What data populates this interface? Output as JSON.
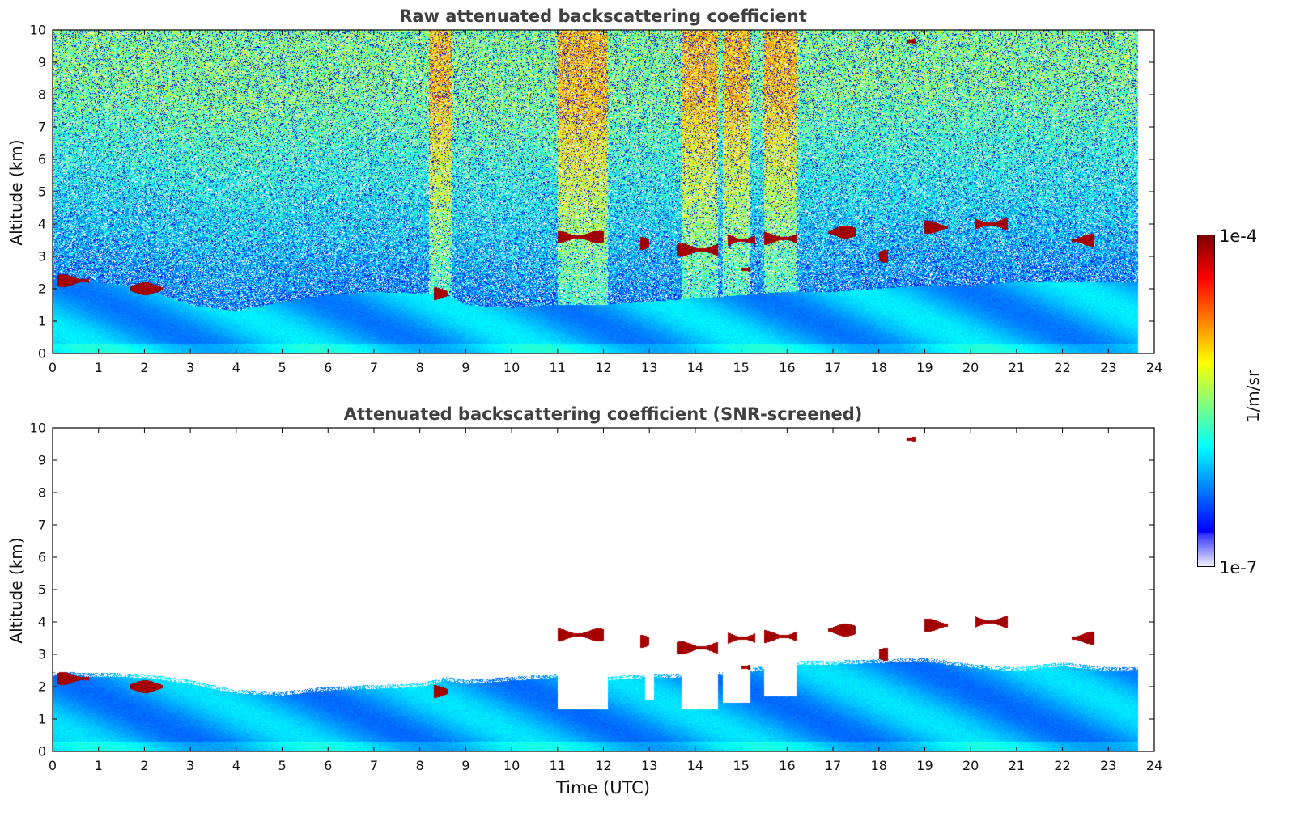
{
  "chart_data": [
    {
      "type": "heatmap",
      "title": "Raw attenuated backscattering coefficient",
      "xlabel": "",
      "ylabel": "Altitude (km)",
      "xlim": [
        0,
        24
      ],
      "ylim": [
        0,
        10
      ],
      "xticks": [
        0,
        1,
        2,
        3,
        4,
        5,
        6,
        7,
        8,
        9,
        10,
        11,
        12,
        13,
        14,
        15,
        16,
        17,
        18,
        19,
        20,
        21,
        22,
        23,
        24
      ],
      "yticks": [
        0,
        1,
        2,
        3,
        4,
        5,
        6,
        7,
        8,
        9,
        10
      ],
      "data_end_time": 23.65,
      "boundary_layer_top_km": [
        [
          0,
          2.3
        ],
        [
          1,
          2.2
        ],
        [
          2,
          2.0
        ],
        [
          3,
          1.5
        ],
        [
          4,
          1.3
        ],
        [
          5,
          1.6
        ],
        [
          6,
          1.8
        ],
        [
          7,
          1.9
        ],
        [
          8,
          1.85
        ],
        [
          8.6,
          1.8
        ],
        [
          9,
          1.5
        ],
        [
          10,
          1.4
        ],
        [
          11,
          1.5
        ],
        [
          12,
          1.5
        ],
        [
          13,
          1.6
        ],
        [
          14,
          1.7
        ],
        [
          15,
          1.8
        ],
        [
          16,
          1.9
        ],
        [
          17,
          1.9
        ],
        [
          18,
          2.0
        ],
        [
          19,
          2.1
        ],
        [
          20,
          2.1
        ],
        [
          21,
          2.2
        ],
        [
          22,
          2.2
        ],
        [
          23,
          2.2
        ],
        [
          23.65,
          2.2
        ]
      ],
      "cloud_features": [
        {
          "t_start": 0.1,
          "t_end": 0.8,
          "alt_km": 2.25
        },
        {
          "t_start": 1.7,
          "t_end": 2.4,
          "alt_km": 2.0
        },
        {
          "t_start": 8.3,
          "t_end": 8.6,
          "alt_km": 1.85
        },
        {
          "t_start": 11.0,
          "t_end": 12.0,
          "alt_km": 3.6
        },
        {
          "t_start": 12.8,
          "t_end": 13.0,
          "alt_km": 3.4
        },
        {
          "t_start": 13.6,
          "t_end": 14.5,
          "alt_km": 3.2
        },
        {
          "t_start": 14.7,
          "t_end": 15.3,
          "alt_km": 3.5
        },
        {
          "t_start": 15.0,
          "t_end": 15.2,
          "alt_km": 2.6
        },
        {
          "t_start": 15.5,
          "t_end": 16.2,
          "alt_km": 3.55
        },
        {
          "t_start": 16.9,
          "t_end": 17.5,
          "alt_km": 3.75
        },
        {
          "t_start": 18.0,
          "t_end": 18.2,
          "alt_km": 3.0
        },
        {
          "t_start": 19.0,
          "t_end": 19.5,
          "alt_km": 3.9
        },
        {
          "t_start": 20.1,
          "t_end": 20.8,
          "alt_km": 4.0
        },
        {
          "t_start": 22.2,
          "t_end": 22.7,
          "alt_km": 3.5
        },
        {
          "t_start": 18.6,
          "t_end": 18.8,
          "alt_km": 9.65
        }
      ],
      "noisy_bands": [
        [
          8.2,
          8.7
        ],
        [
          11.0,
          12.1
        ],
        [
          13.7,
          14.5
        ],
        [
          14.6,
          15.2
        ],
        [
          15.5,
          16.2
        ]
      ]
    },
    {
      "type": "heatmap",
      "title": "Attenuated backscattering coefficient (SNR-screened)",
      "xlabel": "Time (UTC)",
      "ylabel": "Altitude (km)",
      "xlim": [
        0,
        24
      ],
      "ylim": [
        0,
        10
      ],
      "xticks": [
        0,
        1,
        2,
        3,
        4,
        5,
        6,
        7,
        8,
        9,
        10,
        11,
        12,
        13,
        14,
        15,
        16,
        17,
        18,
        19,
        20,
        21,
        22,
        23,
        24
      ],
      "yticks": [
        0,
        1,
        2,
        3,
        4,
        5,
        6,
        7,
        8,
        9,
        10
      ],
      "data_end_time": 23.65,
      "screened_top_km": [
        [
          0,
          2.45
        ],
        [
          2,
          2.4
        ],
        [
          3,
          2.2
        ],
        [
          4,
          1.9
        ],
        [
          5,
          1.85
        ],
        [
          6,
          2.0
        ],
        [
          7,
          2.05
        ],
        [
          8,
          2.1
        ],
        [
          8.6,
          2.3
        ],
        [
          9,
          2.2
        ],
        [
          10,
          2.3
        ],
        [
          11,
          2.4
        ],
        [
          12,
          2.3
        ],
        [
          13,
          2.4
        ],
        [
          14,
          2.4
        ],
        [
          15,
          2.5
        ],
        [
          16,
          2.8
        ],
        [
          17,
          2.8
        ],
        [
          18,
          2.85
        ],
        [
          19,
          2.9
        ],
        [
          20,
          2.7
        ],
        [
          21,
          2.6
        ],
        [
          22,
          2.75
        ],
        [
          23,
          2.6
        ],
        [
          23.65,
          2.6
        ]
      ],
      "screened_gaps": [
        [
          11.0,
          12.1,
          1.3
        ],
        [
          12.9,
          13.1,
          1.6
        ],
        [
          13.7,
          14.5,
          1.3
        ],
        [
          14.6,
          15.2,
          1.5
        ],
        [
          15.5,
          16.2,
          1.7
        ]
      ]
    }
  ],
  "colorbar": {
    "label": "1/m/sr",
    "max_label": "1e-4",
    "min_label": "1e-7",
    "scale": "log",
    "colormap": "jet"
  }
}
